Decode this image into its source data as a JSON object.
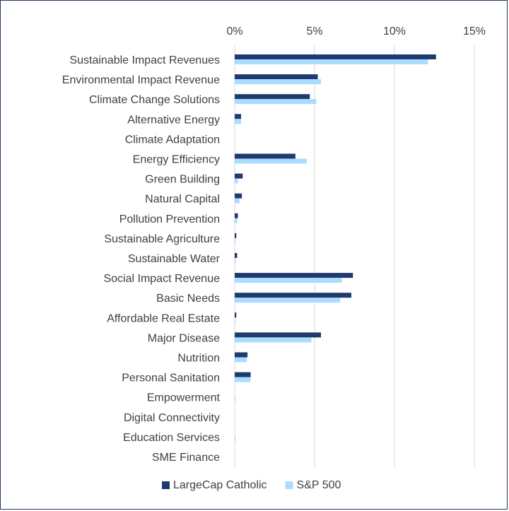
{
  "chart_data": {
    "type": "bar",
    "orientation": "horizontal",
    "title": "",
    "xlabel": "",
    "ylabel": "",
    "xlim": [
      0,
      15
    ],
    "x_ticks": [
      "0%",
      "5%",
      "10%",
      "15%"
    ],
    "x_tick_values": [
      0,
      5,
      10,
      15
    ],
    "grid": "vertical",
    "legend_position": "bottom",
    "categories": [
      "Sustainable Impact Revenues",
      "Environmental Impact Revenue",
      "Climate Change Solutions",
      "Alternative Energy",
      "Climate Adaptation",
      "Energy Efficiency",
      "Green Building",
      "Natural Capital",
      "Pollution Prevention",
      "Sustainable Agriculture",
      "Sustainable Water",
      "Social Impact Revenue",
      "Basic Needs",
      "Affordable Real Estate",
      "Major Disease",
      "Nutrition",
      "Personal Sanitation",
      "Empowerment",
      "Digital Connectivity",
      "Education Services",
      "SME Finance"
    ],
    "series": [
      {
        "name": "LargeCap Catholic",
        "color": "#1f3a6e",
        "values": [
          12.6,
          5.2,
          4.7,
          0.4,
          0.0,
          3.8,
          0.5,
          0.45,
          0.2,
          0.1,
          0.15,
          7.4,
          7.3,
          0.1,
          5.4,
          0.8,
          1.0,
          0.0,
          0.0,
          0.0,
          0.0
        ]
      },
      {
        "name": "S&P 500",
        "color": "#a9dcff",
        "values": [
          12.1,
          5.4,
          5.1,
          0.4,
          0.0,
          4.5,
          0.2,
          0.3,
          0.15,
          0.05,
          0.05,
          6.7,
          6.6,
          0.05,
          4.8,
          0.75,
          1.0,
          0.05,
          0.0,
          0.05,
          0.0
        ]
      }
    ]
  }
}
